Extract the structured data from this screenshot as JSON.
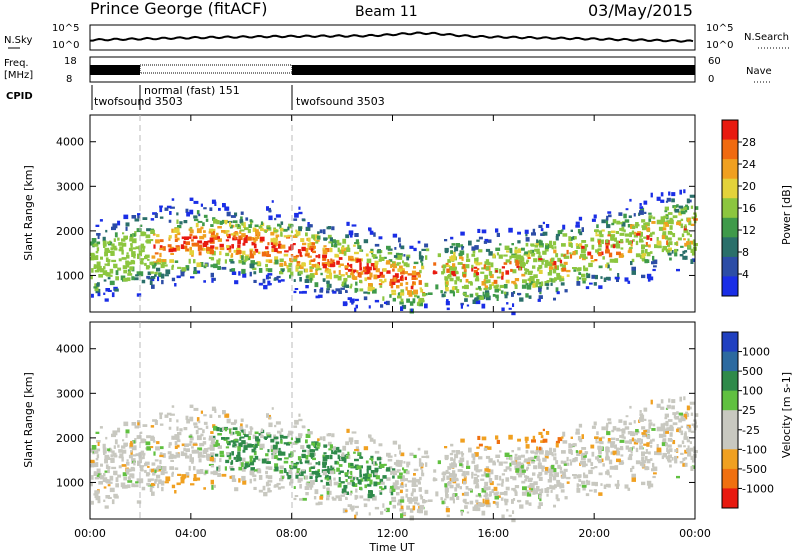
{
  "header": {
    "station": "Prince George (fitACF)",
    "beam": "Beam 11",
    "date": "03/May/2015"
  },
  "top_panels": {
    "nsky_label": "N.Sky",
    "nsearch_label": "N.Search",
    "nsky_ticks": [
      "10^5",
      "10^0"
    ],
    "nsearch_ticks": [
      "10^5",
      "10^0"
    ],
    "freq_label": "Freq.",
    "freq_unit": "[MHz]",
    "freq_ticks": [
      "18",
      "8"
    ],
    "nave_label": "Nave",
    "nave_ticks": [
      "60",
      "0"
    ],
    "cpid_label": "CPID",
    "cpid_segments": [
      "twofsound 3503",
      "normal (fast) 151",
      "twofsound 3503"
    ]
  },
  "colors": {
    "power_scale": [
      "#1a2ee6",
      "#2c4da6",
      "#2a6f6a",
      "#3f9a4a",
      "#8cc63f",
      "#e3d23a",
      "#f0a020",
      "#f06a10",
      "#e81a10"
    ],
    "velocity_scale": [
      "#2040c0",
      "#2c6aa0",
      "#2f8a4a",
      "#60c040",
      "#c8c8c0",
      "#c8c8c0",
      "#f0a020",
      "#f07010",
      "#e81a10"
    ]
  },
  "chart_data": [
    {
      "type": "heatmap",
      "title": "Power",
      "xlabel": "Time UT",
      "ylabel": "Slant Range [km]",
      "x_ticks": [
        "00:00",
        "04:00",
        "08:00",
        "12:00",
        "16:00",
        "20:00",
        "00:00"
      ],
      "y_ticks": [
        "1000",
        "2000",
        "3000",
        "4000"
      ],
      "colorbar_label": "Power [dB]",
      "colorbar_ticks": [
        "4",
        "8",
        "12",
        "16",
        "20",
        "24",
        "28"
      ],
      "ylim": [
        180,
        4600
      ]
    },
    {
      "type": "heatmap",
      "title": "Velocity",
      "xlabel": "Time UT",
      "ylabel": "Slant Range [km]",
      "x_ticks": [
        "00:00",
        "04:00",
        "08:00",
        "12:00",
        "16:00",
        "20:00",
        "00:00"
      ],
      "y_ticks": [
        "1000",
        "2000",
        "3000",
        "4000"
      ],
      "colorbar_label": "Velocity [m s-1]",
      "colorbar_ticks": [
        "1000",
        "500",
        "100",
        "25",
        "-25",
        "-100",
        "-500",
        "-1000"
      ],
      "ylim": [
        180,
        4600
      ]
    }
  ]
}
